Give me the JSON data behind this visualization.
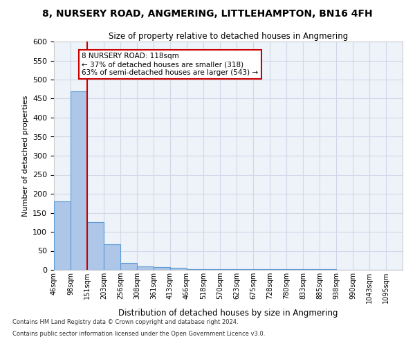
{
  "title": "8, NURSERY ROAD, ANGMERING, LITTLEHAMPTON, BN16 4FH",
  "subtitle": "Size of property relative to detached houses in Angmering",
  "xlabel": "Distribution of detached houses by size in Angmering",
  "ylabel": "Number of detached properties",
  "footer_line1": "Contains HM Land Registry data © Crown copyright and database right 2024.",
  "footer_line2": "Contains public sector information licensed under the Open Government Licence v3.0.",
  "categories": [
    "46sqm",
    "98sqm",
    "151sqm",
    "203sqm",
    "256sqm",
    "308sqm",
    "361sqm",
    "413sqm",
    "466sqm",
    "518sqm",
    "570sqm",
    "623sqm",
    "675sqm",
    "728sqm",
    "780sqm",
    "833sqm",
    "885sqm",
    "938sqm",
    "990sqm",
    "1043sqm",
    "1095sqm"
  ],
  "bar_values": [
    180,
    470,
    125,
    68,
    18,
    10,
    7,
    5,
    2,
    2,
    1,
    1,
    1,
    1,
    1,
    1,
    1,
    0,
    0,
    0,
    0
  ],
  "bar_color": "#aec6e8",
  "bar_edge_color": "#5b9bd5",
  "ylim": [
    0,
    600
  ],
  "yticks": [
    0,
    50,
    100,
    150,
    200,
    250,
    300,
    350,
    400,
    450,
    500,
    550,
    600
  ],
  "annotation_text": "8 NURSERY ROAD: 118sqm\n← 37% of detached houses are smaller (318)\n63% of semi-detached houses are larger (543) →",
  "annotation_box_color": "#ffffff",
  "annotation_border_color": "#cc0000",
  "grid_color": "#d0d8e8",
  "background_color": "#eef2f9"
}
